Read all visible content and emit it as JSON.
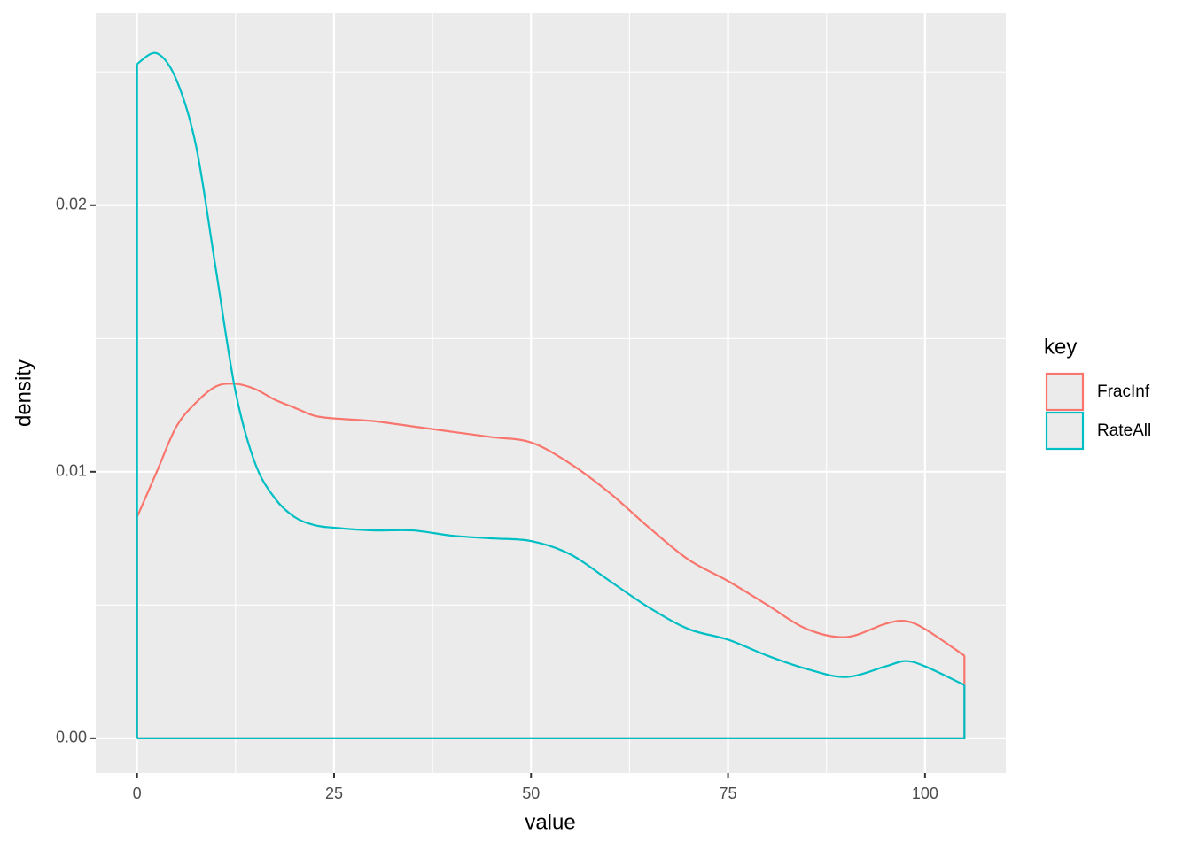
{
  "chart_data": {
    "type": "density",
    "x_label": "value",
    "y_label": "density",
    "legend_title": "key",
    "x": [
      0,
      2.5,
      5,
      7.5,
      10,
      12.5,
      15,
      17.5,
      20,
      22.5,
      25,
      30,
      35,
      40,
      45,
      50,
      55,
      60,
      65,
      70,
      75,
      80,
      85,
      90,
      95,
      97.5,
      100,
      105
    ],
    "series": [
      {
        "name": "FracInf",
        "color": "#f8766d",
        "values": [
          0.0083,
          0.01,
          0.0117,
          0.0126,
          0.0132,
          0.0133,
          0.0131,
          0.0127,
          0.0124,
          0.0121,
          0.012,
          0.0119,
          0.0117,
          0.0115,
          0.0113,
          0.0111,
          0.0103,
          0.0092,
          0.0079,
          0.0067,
          0.0059,
          0.005,
          0.0041,
          0.0038,
          0.0043,
          0.0044,
          0.0041,
          0.0031
        ]
      },
      {
        "name": "RateAll",
        "color": "#00bfc4",
        "values": [
          0.0253,
          0.0257,
          0.0247,
          0.0222,
          0.0176,
          0.013,
          0.0103,
          0.009,
          0.0083,
          0.008,
          0.0079,
          0.0078,
          0.0078,
          0.0076,
          0.0075,
          0.0074,
          0.0069,
          0.0059,
          0.0049,
          0.0041,
          0.0037,
          0.0031,
          0.0026,
          0.0023,
          0.0027,
          0.0029,
          0.0027,
          0.002
        ]
      }
    ],
    "xlim": [
      -5.25,
      110.25
    ],
    "ylim": [
      -0.0013,
      0.0272
    ],
    "xticks": [
      0,
      25,
      50,
      75,
      100
    ],
    "yticks": [
      {
        "value": 0,
        "label": "0.00"
      },
      {
        "value": 0.01,
        "label": "0.01"
      },
      {
        "value": 0.02,
        "label": "0.02"
      }
    ],
    "x_minor_grid": [
      12.5,
      37.5,
      62.5,
      87.5
    ],
    "y_minor_grid": [
      0.005,
      0.015,
      0.025
    ],
    "grid": true,
    "legend_position": "right"
  }
}
